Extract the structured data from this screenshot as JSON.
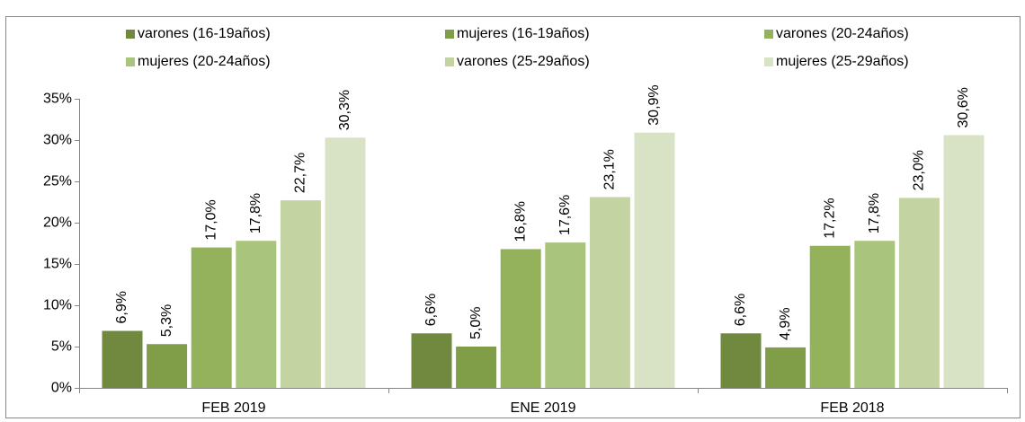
{
  "chart_data": {
    "type": "bar",
    "categories": [
      "FEB 2019",
      "ENE 2019",
      "FEB 2018"
    ],
    "series": [
      {
        "name": "varones (16-19años)",
        "color": "#71893f",
        "values": [
          6.9,
          6.6,
          6.6
        ],
        "value_labels": [
          "6,9%",
          "6,6%",
          "6,6%"
        ]
      },
      {
        "name": "mujeres (16-19años)",
        "color": "#7f9e47",
        "values": [
          5.3,
          5.0,
          4.9
        ],
        "value_labels": [
          "5,3%",
          "5,0%",
          "4,9%"
        ]
      },
      {
        "name": "varones (20-24años)",
        "color": "#94b25b",
        "values": [
          17.0,
          16.8,
          17.2
        ],
        "value_labels": [
          "17,0%",
          "16,8%",
          "17,2%"
        ]
      },
      {
        "name": "mujeres (20-24años)",
        "color": "#a9c47b",
        "values": [
          17.8,
          17.6,
          17.8
        ],
        "value_labels": [
          "17,8%",
          "17,6%",
          "17,8%"
        ]
      },
      {
        "name": "varones (25-29años)",
        "color": "#c3d4a2",
        "values": [
          22.7,
          23.1,
          23.0
        ],
        "value_labels": [
          "22,7%",
          "23,1%",
          "23,0%"
        ]
      },
      {
        "name": "mujeres (25-29años)",
        "color": "#d8e3c5",
        "values": [
          30.3,
          30.9,
          30.6
        ],
        "value_labels": [
          "30,3%",
          "30,9%",
          "30,6%"
        ]
      }
    ],
    "ylim": [
      0,
      35
    ],
    "yticks": [
      {
        "value": 0,
        "label": "0%"
      },
      {
        "value": 5,
        "label": "5%"
      },
      {
        "value": 10,
        "label": "10%"
      },
      {
        "value": 15,
        "label": "15%"
      },
      {
        "value": 20,
        "label": "20%"
      },
      {
        "value": 25,
        "label": "25%"
      },
      {
        "value": 30,
        "label": "30%"
      },
      {
        "value": 35,
        "label": "35%"
      }
    ],
    "grid": false
  }
}
